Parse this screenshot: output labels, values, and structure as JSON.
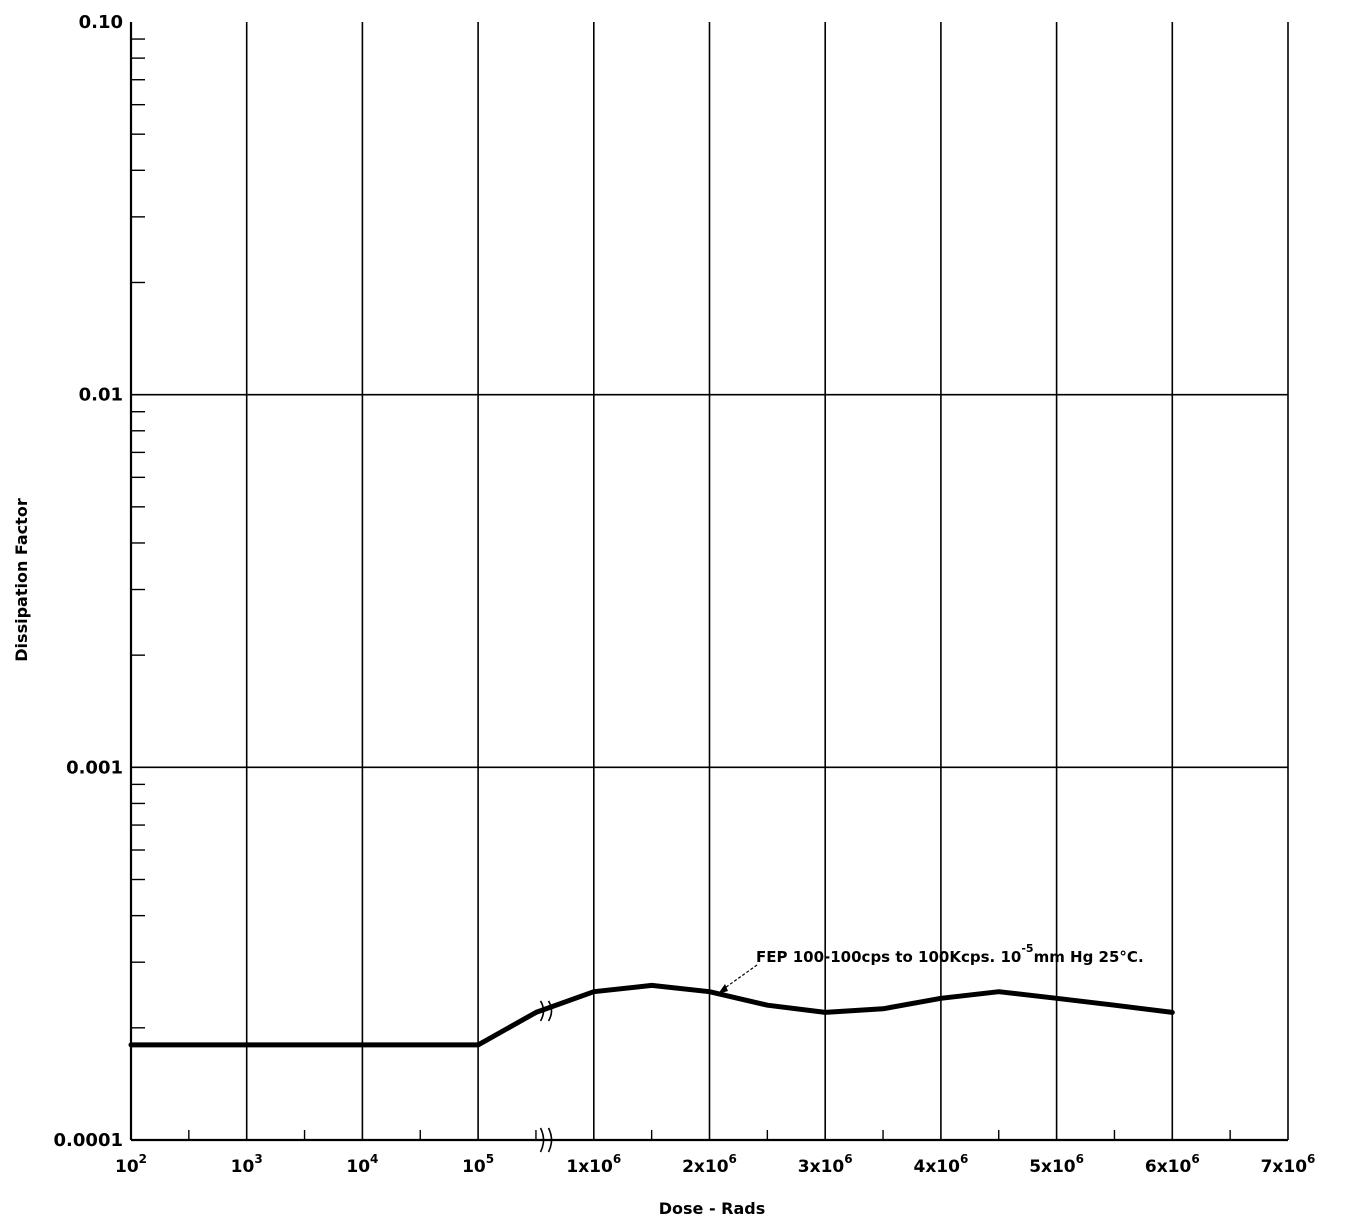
{
  "chart_data": {
    "type": "line",
    "title": "",
    "xlabel": "Dose - Rads",
    "ylabel": "Dissipation Factor",
    "y_scale": "log",
    "ylim": [
      0.0001,
      0.1
    ],
    "y_tick_labels": [
      "0.10",
      "0.01",
      "0.001",
      "0.0001"
    ],
    "y_tick_values": [
      0.1,
      0.01,
      0.001,
      0.0001
    ],
    "x_axis_note": "broken axis: logarithmic from 10^2 to 10^5, then linear from 1x10^6 to 7x10^6",
    "x_tick_labels": [
      {
        "base": "10",
        "exp": "2"
      },
      {
        "base": "10",
        "exp": "3"
      },
      {
        "base": "10",
        "exp": "4"
      },
      {
        "base": "10",
        "exp": "5"
      },
      {
        "base": "1x10",
        "exp": "6"
      },
      {
        "base": "2x10",
        "exp": "6"
      },
      {
        "base": "3x10",
        "exp": "6"
      },
      {
        "base": "4x10",
        "exp": "6"
      },
      {
        "base": "5x10",
        "exp": "6"
      },
      {
        "base": "6x10",
        "exp": "6"
      },
      {
        "base": "7x10",
        "exp": "6"
      }
    ],
    "grid": true,
    "series": [
      {
        "name": "",
        "x": [
          100,
          1000,
          10000,
          100000,
          500000,
          1000000,
          1500000,
          2000000,
          2500000,
          3000000,
          3500000,
          4000000,
          4500000,
          5000000,
          5500000,
          6000000
        ],
        "y": [
          0.00018,
          0.00018,
          0.00018,
          0.00018,
          0.00022,
          0.00025,
          0.00026,
          0.00025,
          0.00023,
          0.00022,
          0.000225,
          0.00024,
          0.00025,
          0.00024,
          0.00023,
          0.00022
        ]
      }
    ],
    "annotation": {
      "text_before": "FEP 100-100cps to 100Kcps.  10",
      "superscript": "-5",
      "text_after": "mm Hg  25°C."
    }
  }
}
